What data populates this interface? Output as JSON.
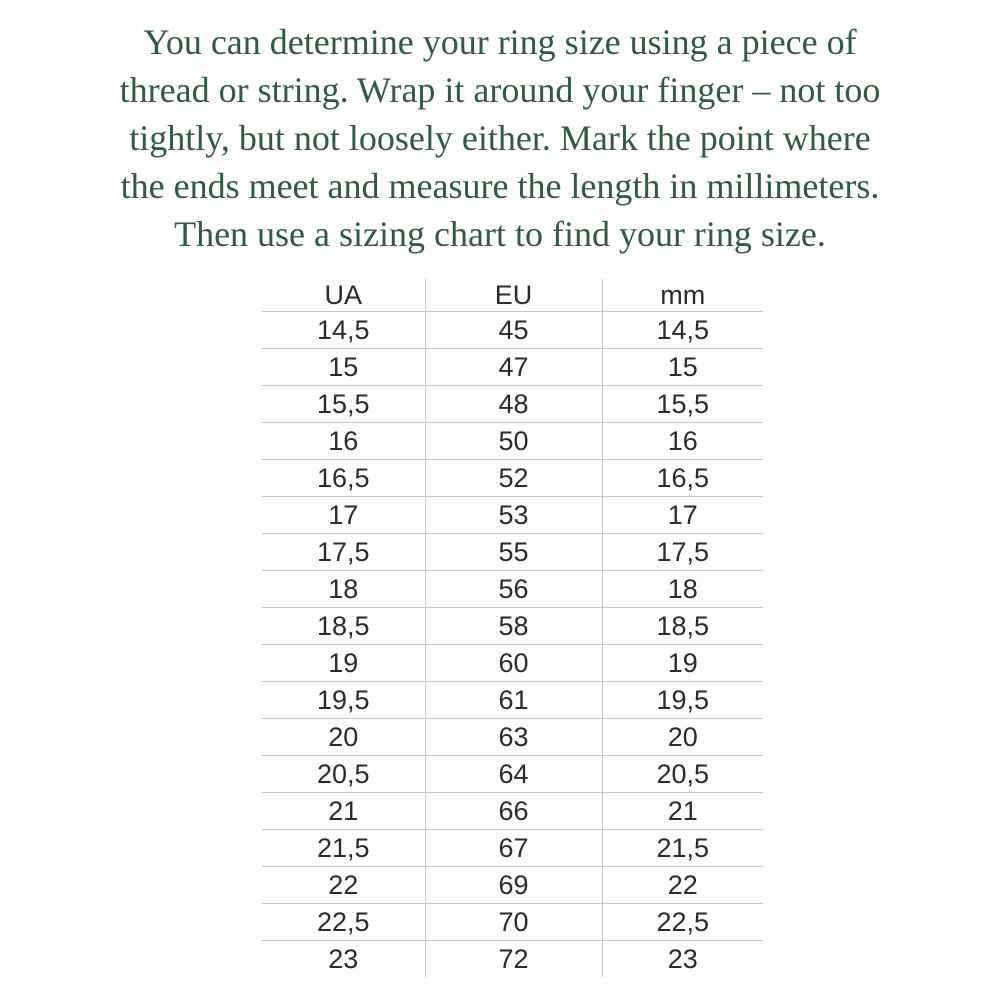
{
  "page": {
    "background": "#fdfdfd"
  },
  "intro": {
    "color": "#315a44",
    "lines": [
      "You can determine your ring size using a piece of",
      "thread or string. Wrap it around your finger – not too",
      "tightly, but not loosely either. Mark the point where",
      "the ends meet and measure the length in millimeters.",
      "Then use a sizing chart to find your ring size."
    ]
  },
  "size_chart": {
    "line_color": "#c6c6c6",
    "text_color": "#2b2b2b",
    "headers": [
      "UA",
      "EU",
      "mm"
    ],
    "rows": [
      [
        "14,5",
        "45",
        "14,5"
      ],
      [
        "15",
        "47",
        "15"
      ],
      [
        "15,5",
        "48",
        "15,5"
      ],
      [
        "16",
        "50",
        "16"
      ],
      [
        "16,5",
        "52",
        "16,5"
      ],
      [
        "17",
        "53",
        "17"
      ],
      [
        "17,5",
        "55",
        "17,5"
      ],
      [
        "18",
        "56",
        "18"
      ],
      [
        "18,5",
        "58",
        "18,5"
      ],
      [
        "19",
        "60",
        "19"
      ],
      [
        "19,5",
        "61",
        "19,5"
      ],
      [
        "20",
        "63",
        "20"
      ],
      [
        "20,5",
        "64",
        "20,5"
      ],
      [
        "21",
        "66",
        "21"
      ],
      [
        "21,5",
        "67",
        "21,5"
      ],
      [
        "22",
        "69",
        "22"
      ],
      [
        "22,5",
        "70",
        "22,5"
      ],
      [
        "23",
        "72",
        "23"
      ]
    ]
  }
}
